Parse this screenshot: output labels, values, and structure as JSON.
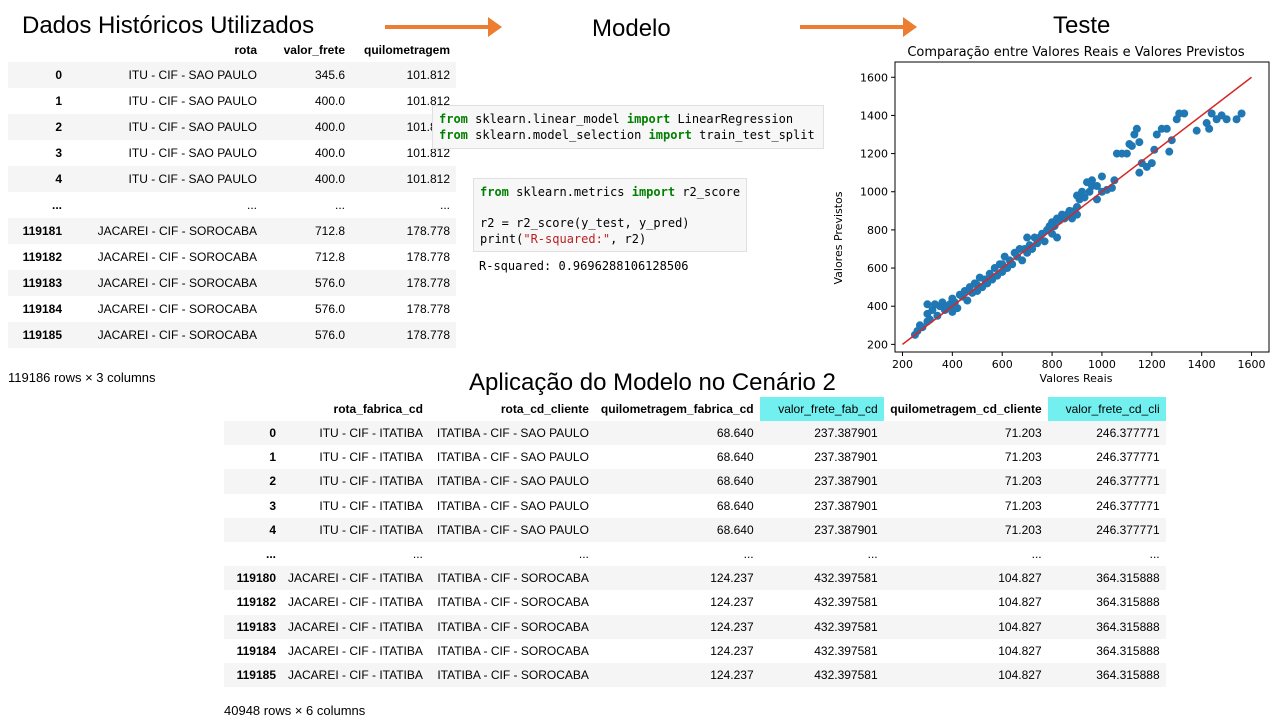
{
  "headings": {
    "historical": "Dados Históricos Utilizados",
    "model": "Modelo",
    "test": "Teste",
    "application": "Aplicação do Modelo no Cenário 2"
  },
  "historical_table": {
    "columns": [
      "",
      "rota",
      "valor_frete",
      "quilometragem"
    ],
    "rows": [
      [
        "0",
        "ITU - CIF - SAO PAULO",
        "345.6",
        "101.812"
      ],
      [
        "1",
        "ITU - CIF - SAO PAULO",
        "400.0",
        "101.812"
      ],
      [
        "2",
        "ITU - CIF - SAO PAULO",
        "400.0",
        "101.812"
      ],
      [
        "3",
        "ITU - CIF - SAO PAULO",
        "400.0",
        "101.812"
      ],
      [
        "4",
        "ITU - CIF - SAO PAULO",
        "400.0",
        "101.812"
      ],
      [
        "...",
        "...",
        "...",
        "..."
      ],
      [
        "119181",
        "JACAREI - CIF - SOROCABA",
        "712.8",
        "178.778"
      ],
      [
        "119182",
        "JACAREI - CIF - SOROCABA",
        "712.8",
        "178.778"
      ],
      [
        "119183",
        "JACAREI - CIF - SOROCABA",
        "576.0",
        "178.778"
      ],
      [
        "119184",
        "JACAREI - CIF - SOROCABA",
        "576.0",
        "178.778"
      ],
      [
        "119185",
        "JACAREI - CIF - SOROCABA",
        "576.0",
        "178.778"
      ]
    ],
    "shape": "119186 rows × 3 columns"
  },
  "code_cells": {
    "imports_line1": [
      "from",
      " sklearn.linear_model ",
      "import",
      " LinearRegression"
    ],
    "imports_line2": [
      "from",
      " sklearn.model_selection ",
      "import",
      " train_test_split"
    ],
    "metrics_line1": [
      "from",
      " sklearn.metrics ",
      "import",
      " r2_score"
    ],
    "metrics_line2": "r2 = r2_score(y_test, y_pred)",
    "metrics_line3_pre": "print(",
    "metrics_line3_str": "\"R-squared:\"",
    "metrics_line3_post": ", r2)",
    "output": "R-squared: 0.9696288106128506"
  },
  "chart_data": {
    "type": "scatter",
    "title": "Comparação entre Valores Reais e Valores Previstos",
    "xlabel": "Valores Reais",
    "ylabel": "Valores Previstos",
    "xlim": [
      170,
      1670
    ],
    "ylim": [
      160,
      1680
    ],
    "xticks": [
      200,
      400,
      600,
      800,
      1000,
      1200,
      1400,
      1600
    ],
    "yticks": [
      200,
      400,
      600,
      800,
      1000,
      1200,
      1400,
      1600
    ],
    "grid": false,
    "point_color": "#1f77b4",
    "line_color": "#d62728",
    "fit_line": {
      "x": [
        200,
        1600
      ],
      "y": [
        200,
        1600
      ]
    },
    "points": [
      [
        250,
        250
      ],
      [
        260,
        270
      ],
      [
        270,
        300
      ],
      [
        280,
        290
      ],
      [
        300,
        320
      ],
      [
        300,
        360
      ],
      [
        300,
        410
      ],
      [
        310,
        330
      ],
      [
        320,
        380
      ],
      [
        330,
        410
      ],
      [
        340,
        350
      ],
      [
        350,
        400
      ],
      [
        360,
        420
      ],
      [
        370,
        380
      ],
      [
        380,
        400
      ],
      [
        390,
        410
      ],
      [
        400,
        370
      ],
      [
        400,
        400
      ],
      [
        400,
        440
      ],
      [
        410,
        420
      ],
      [
        420,
        390
      ],
      [
        430,
        460
      ],
      [
        440,
        450
      ],
      [
        450,
        480
      ],
      [
        460,
        430
      ],
      [
        470,
        500
      ],
      [
        480,
        470
      ],
      [
        490,
        520
      ],
      [
        500,
        480
      ],
      [
        500,
        510
      ],
      [
        510,
        550
      ],
      [
        520,
        500
      ],
      [
        530,
        540
      ],
      [
        540,
        520
      ],
      [
        550,
        570
      ],
      [
        560,
        540
      ],
      [
        570,
        600
      ],
      [
        580,
        560
      ],
      [
        590,
        620
      ],
      [
        600,
        580
      ],
      [
        600,
        620
      ],
      [
        610,
        660
      ],
      [
        620,
        600
      ],
      [
        630,
        640
      ],
      [
        640,
        620
      ],
      [
        650,
        680
      ],
      [
        660,
        660
      ],
      [
        670,
        700
      ],
      [
        680,
        640
      ],
      [
        690,
        700
      ],
      [
        700,
        680
      ],
      [
        710,
        720
      ],
      [
        720,
        700
      ],
      [
        730,
        760
      ],
      [
        740,
        730
      ],
      [
        750,
        760
      ],
      [
        760,
        780
      ],
      [
        770,
        740
      ],
      [
        780,
        800
      ],
      [
        790,
        820
      ],
      [
        800,
        780
      ],
      [
        800,
        840
      ],
      [
        810,
        820
      ],
      [
        820,
        860
      ],
      [
        830,
        850
      ],
      [
        840,
        880
      ],
      [
        850,
        860
      ],
      [
        860,
        880
      ],
      [
        870,
        900
      ],
      [
        880,
        860
      ],
      [
        890,
        900
      ],
      [
        900,
        880
      ],
      [
        900,
        920
      ],
      [
        910,
        960
      ],
      [
        920,
        1000
      ],
      [
        930,
        970
      ],
      [
        940,
        1050
      ],
      [
        950,
        1000
      ],
      [
        960,
        1030
      ],
      [
        980,
        960
      ],
      [
        1000,
        1000
      ],
      [
        1000,
        1080
      ],
      [
        1020,
        1010
      ],
      [
        1040,
        1020
      ],
      [
        1050,
        1060
      ],
      [
        1060,
        1200
      ],
      [
        1080,
        1200
      ],
      [
        1100,
        1200
      ],
      [
        1110,
        1250
      ],
      [
        1120,
        1240
      ],
      [
        1130,
        1300
      ],
      [
        1140,
        1330
      ],
      [
        1150,
        1260
      ],
      [
        1150,
        1100
      ],
      [
        1160,
        1150
      ],
      [
        1180,
        1130
      ],
      [
        1200,
        1150
      ],
      [
        1210,
        1220
      ],
      [
        1220,
        1300
      ],
      [
        1240,
        1330
      ],
      [
        1260,
        1330
      ],
      [
        1270,
        1210
      ],
      [
        1280,
        1270
      ],
      [
        1300,
        1380
      ],
      [
        1310,
        1410
      ],
      [
        1330,
        1410
      ],
      [
        1380,
        1320
      ],
      [
        1420,
        1360
      ],
      [
        1430,
        1330
      ],
      [
        1440,
        1410
      ],
      [
        1460,
        1380
      ],
      [
        1480,
        1400
      ],
      [
        1500,
        1380
      ],
      [
        1540,
        1380
      ],
      [
        1560,
        1410
      ],
      [
        700,
        760
      ],
      [
        820,
        760
      ],
      [
        900,
        980
      ],
      [
        980,
        1030
      ],
      [
        960,
        1060
      ]
    ]
  },
  "application_table": {
    "columns": [
      "",
      "rota_fabrica_cd",
      "rota_cd_cliente",
      "quilometragem_fabrica_cd",
      "valor_frete_fab_cd",
      "quilometragem_cd_cliente",
      "valor_frete_cd_cli"
    ],
    "rows": [
      [
        "0",
        "ITU - CIF - ITATIBA",
        "ITATIBA - CIF - SAO PAULO",
        "68.640",
        "237.387901",
        "71.203",
        "246.377771"
      ],
      [
        "1",
        "ITU - CIF - ITATIBA",
        "ITATIBA - CIF - SAO PAULO",
        "68.640",
        "237.387901",
        "71.203",
        "246.377771"
      ],
      [
        "2",
        "ITU - CIF - ITATIBA",
        "ITATIBA - CIF - SAO PAULO",
        "68.640",
        "237.387901",
        "71.203",
        "246.377771"
      ],
      [
        "3",
        "ITU - CIF - ITATIBA",
        "ITATIBA - CIF - SAO PAULO",
        "68.640",
        "237.387901",
        "71.203",
        "246.377771"
      ],
      [
        "4",
        "ITU - CIF - ITATIBA",
        "ITATIBA - CIF - SAO PAULO",
        "68.640",
        "237.387901",
        "71.203",
        "246.377771"
      ],
      [
        "...",
        "...",
        "...",
        "...",
        "...",
        "...",
        "..."
      ],
      [
        "119180",
        "JACAREI - CIF - ITATIBA",
        "ITATIBA - CIF - SOROCABA",
        "124.237",
        "432.397581",
        "104.827",
        "364.315888"
      ],
      [
        "119182",
        "JACAREI - CIF - ITATIBA",
        "ITATIBA - CIF - SOROCABA",
        "124.237",
        "432.397581",
        "104.827",
        "364.315888"
      ],
      [
        "119183",
        "JACAREI - CIF - ITATIBA",
        "ITATIBA - CIF - SOROCABA",
        "124.237",
        "432.397581",
        "104.827",
        "364.315888"
      ],
      [
        "119184",
        "JACAREI - CIF - ITATIBA",
        "ITATIBA - CIF - SOROCABA",
        "124.237",
        "432.397581",
        "104.827",
        "364.315888"
      ],
      [
        "119185",
        "JACAREI - CIF - ITATIBA",
        "ITATIBA - CIF - SOROCABA",
        "124.237",
        "432.397581",
        "104.827",
        "364.315888"
      ]
    ],
    "highlighted_columns": [
      "valor_frete_fab_cd",
      "valor_frete_cd_cli"
    ],
    "highlight_color": "#72f0f0",
    "shape": "40948 rows × 6 columns"
  },
  "colors": {
    "arrow": "#ed7d31",
    "row_stripe": "#f5f5f5",
    "code_bg": "#f7f7f7",
    "keyword": "#008000",
    "string": "#ba2121"
  }
}
